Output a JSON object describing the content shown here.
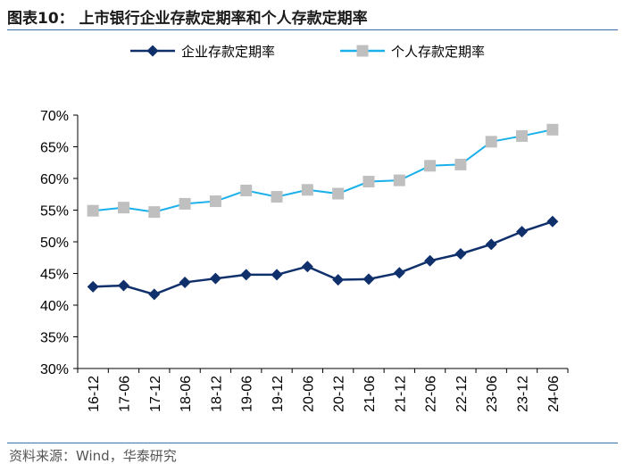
{
  "header": {
    "title": "图表10：  上市银行企业存款定期率和个人存款定期率"
  },
  "footer": {
    "source": "资料来源：Wind，华泰研究"
  },
  "chart_data": {
    "type": "line",
    "title": "上市银行企业存款定期率和个人存款定期率",
    "categories": [
      "16-12",
      "17-06",
      "17-12",
      "18-06",
      "18-12",
      "19-06",
      "19-12",
      "20-06",
      "20-12",
      "21-06",
      "21-12",
      "22-06",
      "22-12",
      "23-06",
      "23-12",
      "24-06"
    ],
    "series": [
      {
        "name": "企业存款定期率",
        "color": "#10306b",
        "marker": "diamond",
        "values": [
          42.9,
          43.1,
          41.7,
          43.6,
          44.2,
          44.8,
          44.8,
          46.1,
          44.0,
          44.1,
          45.1,
          47.0,
          48.1,
          49.6,
          51.6,
          53.2
        ]
      },
      {
        "name": "个人存款定期率",
        "color": "#1ab0ea",
        "marker": "square",
        "values": [
          54.9,
          55.4,
          54.7,
          56.0,
          56.4,
          58.1,
          57.1,
          58.2,
          57.6,
          59.5,
          59.7,
          62.0,
          62.2,
          65.8,
          66.7,
          67.7
        ]
      }
    ],
    "y_ticks": [
      "30%",
      "35%",
      "40%",
      "45%",
      "50%",
      "55%",
      "60%",
      "65%",
      "70%"
    ],
    "ylim": [
      30,
      70
    ],
    "legend_position": "top",
    "grid": false
  }
}
